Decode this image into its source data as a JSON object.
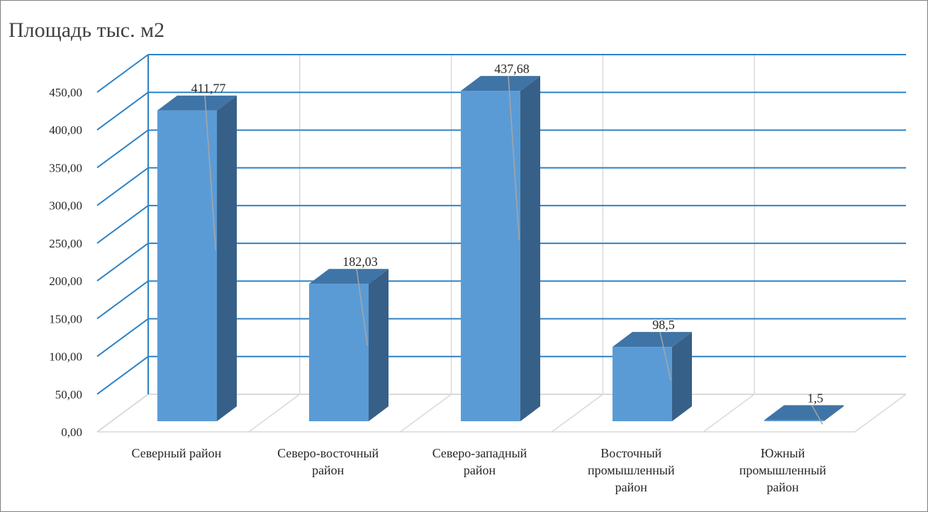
{
  "chart_data": {
    "type": "bar",
    "title": "Площадь тыс. м2",
    "categories": [
      [
        "Северный район"
      ],
      [
        "Северо-восточный",
        "район"
      ],
      [
        "Северо-западный",
        "район"
      ],
      [
        "Восточный",
        "промышленный",
        "район"
      ],
      [
        "Южный",
        "промышленный",
        "район"
      ]
    ],
    "values": [
      411.77,
      182.03,
      437.68,
      98.5,
      1.5
    ],
    "value_labels": [
      "411,77",
      "182,03",
      "437,68",
      "98,5",
      "1,5"
    ],
    "y_tick_labels": [
      "0,00",
      "50,00",
      "100,00",
      "150,00",
      "200,00",
      "250,00",
      "300,00",
      "350,00",
      "400,00",
      "450,00"
    ],
    "ylim": [
      0,
      450
    ],
    "grid": true,
    "style": "3d-column",
    "colors": {
      "bar_front": "#5b9bd5",
      "bar_side": "#376088",
      "bar_top": "#3f74a6",
      "gridline": "#2e82c5",
      "floor_line": "#d9d9d9",
      "leader_line": "#a6a6a6"
    }
  }
}
